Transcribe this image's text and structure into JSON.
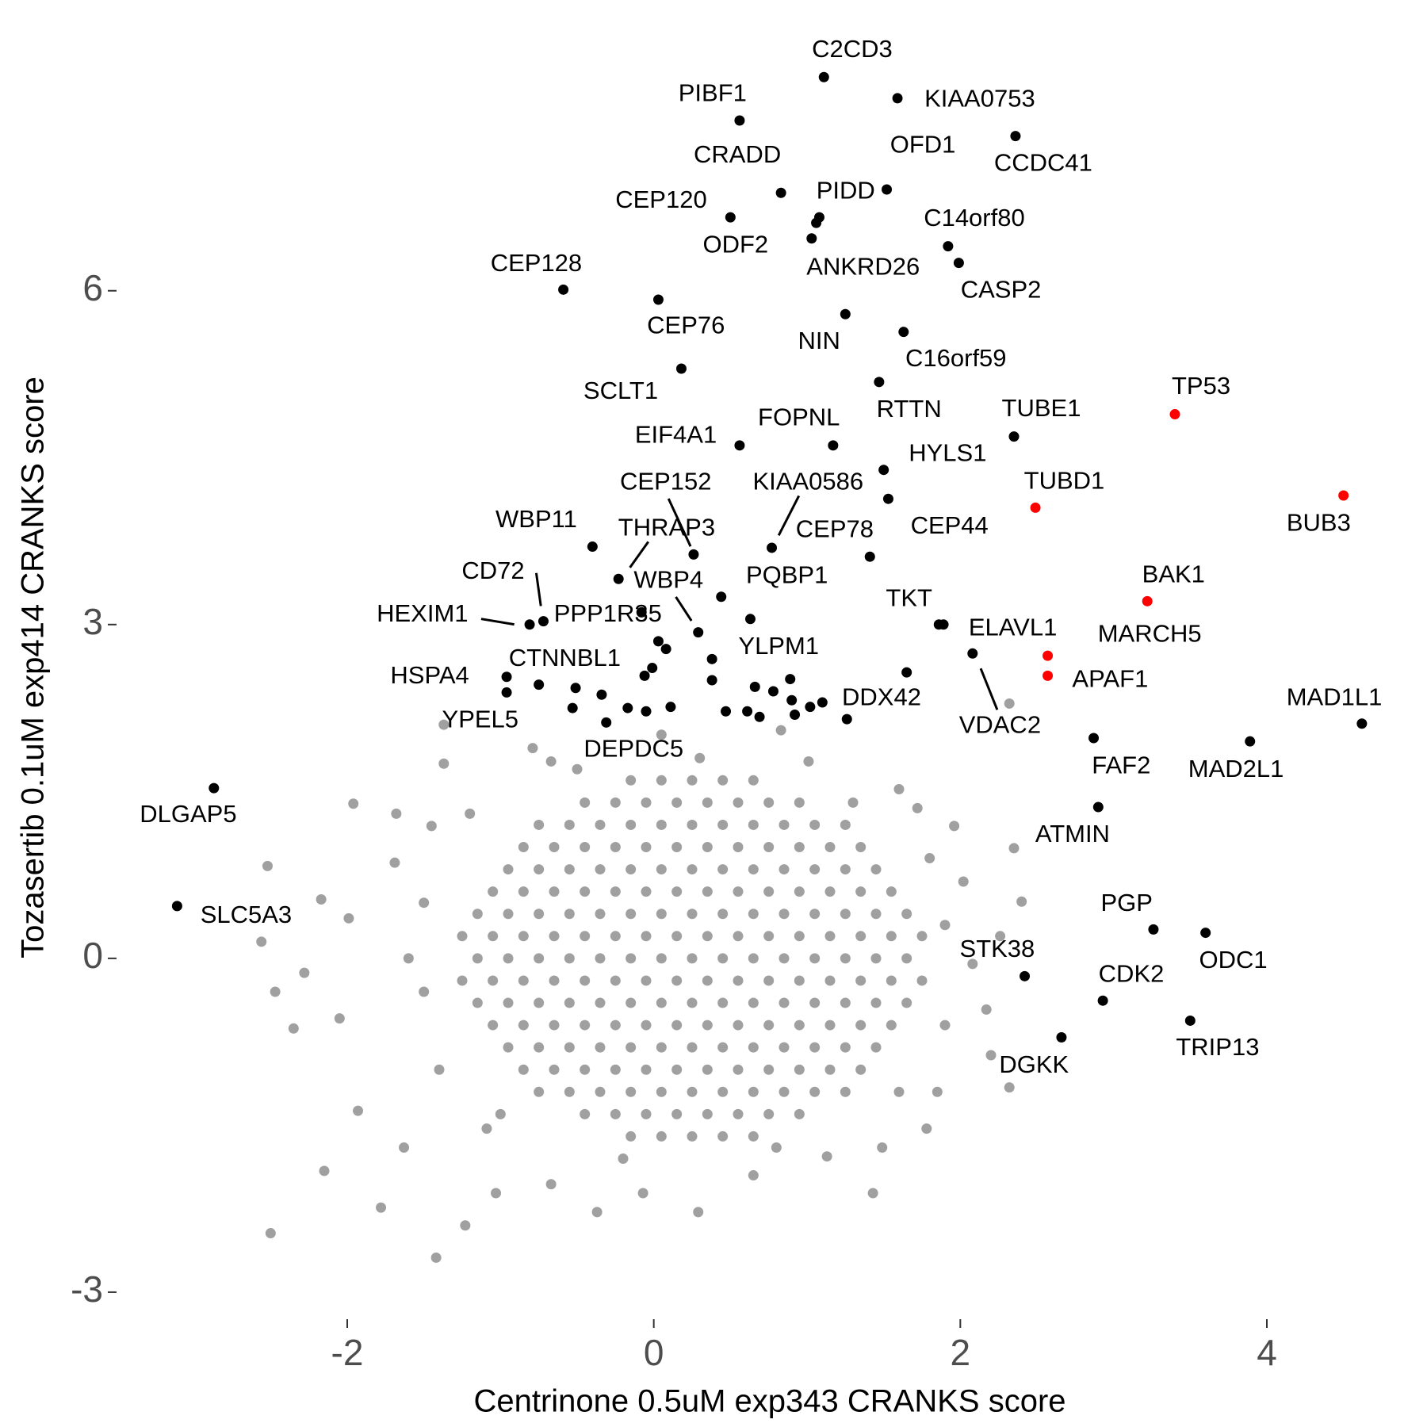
{
  "chart_data": {
    "type": "scatter",
    "x_label": "Centrinone 0.5uM exp343 CRANKS score",
    "y_label": "Tozasertib 0.1uM exp414 CRANKS score",
    "xlim": [
      -3.5,
      4.75
    ],
    "ylim": [
      -3.2,
      8.1
    ],
    "xticks": [
      -2,
      0,
      2,
      4
    ],
    "yticks": [
      -3,
      0,
      3,
      6
    ],
    "series": [
      {
        "color": "#a0a0a0",
        "x": [
          -0.15,
          0.05,
          0.25,
          0.45,
          0.65,
          -0.45,
          -0.25,
          -0.05,
          0.15,
          0.35,
          0.55,
          0.75,
          0.95,
          -0.75,
          -0.55,
          -0.35,
          -0.15,
          0.05,
          0.25,
          0.45,
          0.65,
          0.85,
          1.05,
          1.25,
          -0.85,
          -0.65,
          -0.45,
          -0.25,
          -0.05,
          0.15,
          0.35,
          0.55,
          0.75,
          0.95,
          1.15,
          1.35,
          -0.95,
          -0.75,
          -0.55,
          -0.35,
          -0.15,
          0.05,
          0.25,
          0.45,
          0.65,
          0.85,
          1.05,
          1.25,
          1.45,
          -1.05,
          -0.85,
          -0.65,
          -0.45,
          -0.25,
          -0.05,
          0.15,
          0.35,
          0.55,
          0.75,
          0.95,
          1.15,
          1.35,
          1.55,
          -1.15,
          -0.95,
          -0.75,
          -0.55,
          -0.35,
          -0.15,
          0.05,
          0.25,
          0.45,
          0.65,
          0.85,
          1.05,
          1.25,
          1.45,
          1.65,
          -1.25,
          -1.05,
          -0.85,
          -0.65,
          -0.45,
          -0.25,
          -0.05,
          0.15,
          0.35,
          0.55,
          0.75,
          0.95,
          1.15,
          1.35,
          1.55,
          1.75,
          -1.15,
          -0.95,
          -0.75,
          -0.55,
          -0.35,
          -0.15,
          0.05,
          0.25,
          0.45,
          0.65,
          0.85,
          1.05,
          1.25,
          1.45,
          1.65,
          -1.25,
          -1.05,
          -0.85,
          -0.65,
          -0.45,
          -0.25,
          -0.05,
          0.15,
          0.35,
          0.55,
          0.75,
          0.95,
          1.15,
          1.35,
          1.55,
          1.75,
          -1.15,
          -0.95,
          -0.75,
          -0.55,
          -0.35,
          -0.15,
          0.05,
          0.25,
          0.45,
          0.65,
          0.85,
          1.05,
          1.25,
          1.45,
          1.65,
          -1.05,
          -0.85,
          -0.65,
          -0.45,
          -0.25,
          -0.05,
          0.15,
          0.35,
          0.55,
          0.75,
          0.95,
          1.15,
          1.35,
          1.55,
          -0.95,
          -0.75,
          -0.55,
          -0.35,
          -0.15,
          0.05,
          0.25,
          0.45,
          0.65,
          0.85,
          1.05,
          1.25,
          1.45,
          -0.85,
          -0.65,
          -0.45,
          -0.25,
          -0.05,
          0.15,
          0.35,
          0.55,
          0.75,
          0.95,
          1.15,
          1.35,
          -0.75,
          -0.55,
          -0.35,
          -0.15,
          0.05,
          0.25,
          0.45,
          0.65,
          0.85,
          1.05,
          1.25,
          -0.45,
          -0.25,
          -0.05,
          0.15,
          0.35,
          0.55,
          0.75,
          0.95,
          -0.15,
          0.05,
          0.25,
          0.45,
          0.65,
          2.32,
          -1.37,
          -1.37,
          -1.96,
          -1.68,
          -2.52,
          -2.56,
          -2.5,
          -1.42,
          2.35,
          2.32,
          2.4,
          1.85,
          -2.28,
          -2.15,
          -1.78,
          -1.23,
          -0.37,
          0.29,
          1.43,
          2.17,
          1.96,
          1.6,
          0.05,
          -0.79,
          -0.67,
          0.83,
          1.01,
          -1.93,
          -1.63,
          -1.09,
          -2.17,
          -1.99,
          -2.05,
          -2.47,
          2.08,
          2.26,
          1.78,
          1.13,
          -0.67,
          -1.03,
          -0.07,
          0.65,
          1.49,
          1.72,
          -1.45,
          -1.69,
          -2.35,
          2.02,
          2.2,
          -1.5,
          -1.5,
          -1.4,
          -1.2,
          -1.0,
          1.9,
          1.9,
          1.8,
          1.6,
          0.3,
          -0.2,
          0.8,
          -0.5,
          1.3,
          -1.6
        ],
        "y": [
          1.6,
          1.6,
          1.6,
          1.6,
          1.6,
          1.4,
          1.4,
          1.4,
          1.4,
          1.4,
          1.4,
          1.4,
          1.4,
          1.2,
          1.2,
          1.2,
          1.2,
          1.2,
          1.2,
          1.2,
          1.2,
          1.2,
          1.2,
          1.2,
          1.0,
          1.0,
          1.0,
          1.0,
          1.0,
          1.0,
          1.0,
          1.0,
          1.0,
          1.0,
          1.0,
          1.0,
          0.8,
          0.8,
          0.8,
          0.8,
          0.8,
          0.8,
          0.8,
          0.8,
          0.8,
          0.8,
          0.8,
          0.8,
          0.8,
          0.6,
          0.6,
          0.6,
          0.6,
          0.6,
          0.6,
          0.6,
          0.6,
          0.6,
          0.6,
          0.6,
          0.6,
          0.6,
          0.6,
          0.4,
          0.4,
          0.4,
          0.4,
          0.4,
          0.4,
          0.4,
          0.4,
          0.4,
          0.4,
          0.4,
          0.4,
          0.4,
          0.4,
          0.4,
          0.2,
          0.2,
          0.2,
          0.2,
          0.2,
          0.2,
          0.2,
          0.2,
          0.2,
          0.2,
          0.2,
          0.2,
          0.2,
          0.2,
          0.2,
          0.2,
          0,
          0,
          0,
          0,
          0,
          0,
          0,
          0,
          0,
          0,
          0,
          0,
          0,
          0,
          0,
          -0.2,
          -0.2,
          -0.2,
          -0.2,
          -0.2,
          -0.2,
          -0.2,
          -0.2,
          -0.2,
          -0.2,
          -0.2,
          -0.2,
          -0.2,
          -0.2,
          -0.2,
          -0.2,
          -0.4,
          -0.4,
          -0.4,
          -0.4,
          -0.4,
          -0.4,
          -0.4,
          -0.4,
          -0.4,
          -0.4,
          -0.4,
          -0.4,
          -0.4,
          -0.4,
          -0.4,
          -0.6,
          -0.6,
          -0.6,
          -0.6,
          -0.6,
          -0.6,
          -0.6,
          -0.6,
          -0.6,
          -0.6,
          -0.6,
          -0.6,
          -0.6,
          -0.6,
          -0.8,
          -0.8,
          -0.8,
          -0.8,
          -0.8,
          -0.8,
          -0.8,
          -0.8,
          -0.8,
          -0.8,
          -0.8,
          -0.8,
          -0.8,
          -1.0,
          -1.0,
          -1.0,
          -1.0,
          -1.0,
          -1.0,
          -1.0,
          -1.0,
          -1.0,
          -1.0,
          -1.0,
          -1.0,
          -1.2,
          -1.2,
          -1.2,
          -1.2,
          -1.2,
          -1.2,
          -1.2,
          -1.2,
          -1.2,
          -1.2,
          -1.2,
          -1.4,
          -1.4,
          -1.4,
          -1.4,
          -1.4,
          -1.4,
          -1.4,
          -1.4,
          -1.6,
          -1.6,
          -1.6,
          -1.6,
          -1.6,
          2.29,
          2.1,
          1.75,
          1.39,
          1.3,
          0.83,
          0.15,
          -2.47,
          -2.69,
          0.99,
          -1.16,
          0.51,
          -1.2,
          -0.13,
          -1.91,
          -2.24,
          -2.4,
          -2.28,
          -2.28,
          -2.11,
          -0.46,
          1.19,
          1.52,
          2.01,
          1.89,
          1.77,
          2.05,
          1.77,
          -1.37,
          -1.7,
          -1.53,
          0.53,
          0.36,
          -0.54,
          -0.3,
          -0.05,
          0.2,
          -1.53,
          -1.78,
          -2.03,
          -2.11,
          -2.11,
          -1.95,
          -1.7,
          1.35,
          1.19,
          0.86,
          -0.63,
          0.69,
          -0.87,
          0.5,
          -0.3,
          -1.0,
          1.3,
          -1.4,
          0.3,
          -0.6,
          0.9,
          -1.2,
          1.8,
          -1.8,
          -1.7,
          1.7,
          1.4,
          0.0
        ]
      },
      {
        "color": "#000000",
        "x": [
          1.11,
          1.59,
          0.56,
          2.36,
          0.83,
          1.52,
          0.5,
          1.08,
          1.06,
          1.03,
          1.92,
          1.99,
          -0.59,
          0.03,
          1.25,
          1.63,
          0.18,
          1.47,
          2.35,
          0.56,
          1.17,
          1.5,
          1.53,
          -0.4,
          0.77,
          0.26,
          1.41,
          -0.23,
          -0.72,
          -0.81,
          -0.08,
          0.29,
          0.44,
          0.63,
          1.86,
          1.89,
          2.08,
          0.03,
          -0.96,
          -0.96,
          -0.31,
          1.26,
          4.62,
          3.89,
          2.87,
          -2.87,
          2.9,
          -3.11,
          3.26,
          3.6,
          2.42,
          2.93,
          3.5,
          2.66,
          0.08,
          -0.01,
          -0.06,
          0.38,
          0.38,
          -0.75,
          -0.51,
          -0.34,
          -0.53,
          -0.17,
          -0.05,
          0.11,
          0.47,
          0.66,
          0.78,
          0.89,
          0.61,
          0.69,
          0.9,
          0.92,
          1.02,
          1.1,
          1.65
        ],
        "y": [
          7.92,
          7.73,
          7.53,
          7.39,
          6.88,
          6.91,
          6.66,
          6.66,
          6.61,
          6.47,
          6.4,
          6.25,
          6.01,
          5.92,
          5.79,
          5.63,
          5.3,
          5.18,
          4.69,
          4.61,
          4.61,
          4.39,
          4.13,
          3.7,
          3.69,
          3.63,
          3.61,
          3.41,
          3.03,
          3.0,
          3.11,
          2.93,
          3.25,
          3.05,
          3.0,
          3.0,
          2.74,
          2.85,
          2.53,
          2.39,
          2.12,
          2.15,
          2.11,
          1.95,
          1.98,
          1.53,
          1.36,
          0.47,
          0.26,
          0.23,
          -0.16,
          -0.38,
          -0.56,
          -0.71,
          2.78,
          2.61,
          2.54,
          2.69,
          2.5,
          2.46,
          2.43,
          2.37,
          2.25,
          2.25,
          2.22,
          2.26,
          2.22,
          2.44,
          2.4,
          2.51,
          2.22,
          2.17,
          2.32,
          2.19,
          2.26,
          2.3,
          2.57
        ],
        "labels": [
          "C2CD3",
          "KIAA0753",
          "PIBF1",
          "CCDC41",
          "CRADD",
          "OFD1",
          "CEP120",
          "PIDD",
          "ANKRD26",
          "ODF2",
          "C14orf80",
          "CASP2",
          "CEP128",
          "CEP76",
          "NIN",
          "C16orf59",
          "SCLT1",
          "RTTN",
          "TUBE1",
          "EIF4A1",
          "FOPNL",
          "HYLS1",
          "CEP44",
          "WBP11",
          "KIAA0586",
          "CEP152",
          "CEP78",
          "THRAP3",
          "CD72",
          "HEXIM1",
          "PPP1R35",
          "WBP4",
          "PQBP1",
          "YLPM1",
          "TKT",
          "ELAVL1",
          "VDAC2",
          "CTNNBL1",
          "HSPA4",
          "YPEL5",
          "DEPDC5",
          "DDX42",
          "MAD1L1",
          "MAD2L1",
          "FAF2",
          "DLGAP5",
          "ATMIN",
          "SLC5A3",
          "PGP",
          "ODC1",
          "STK38",
          "CDK2",
          "TRIP13",
          "DGKK",
          null,
          null,
          null,
          null,
          null,
          null,
          null,
          null,
          null,
          null,
          null,
          null,
          null,
          null,
          null,
          null,
          null,
          null,
          null,
          null,
          null,
          null,
          null
        ]
      },
      {
        "color": "#ff0000",
        "x": [
          3.4,
          4.5,
          2.49,
          3.22,
          2.57,
          2.57
        ],
        "y": [
          4.89,
          4.16,
          4.05,
          3.21,
          2.72,
          2.54
        ],
        "labels": [
          "TP53",
          "BUB3",
          "TUBD1",
          "BAK1",
          "MARCH5",
          "APAF1"
        ]
      }
    ]
  }
}
